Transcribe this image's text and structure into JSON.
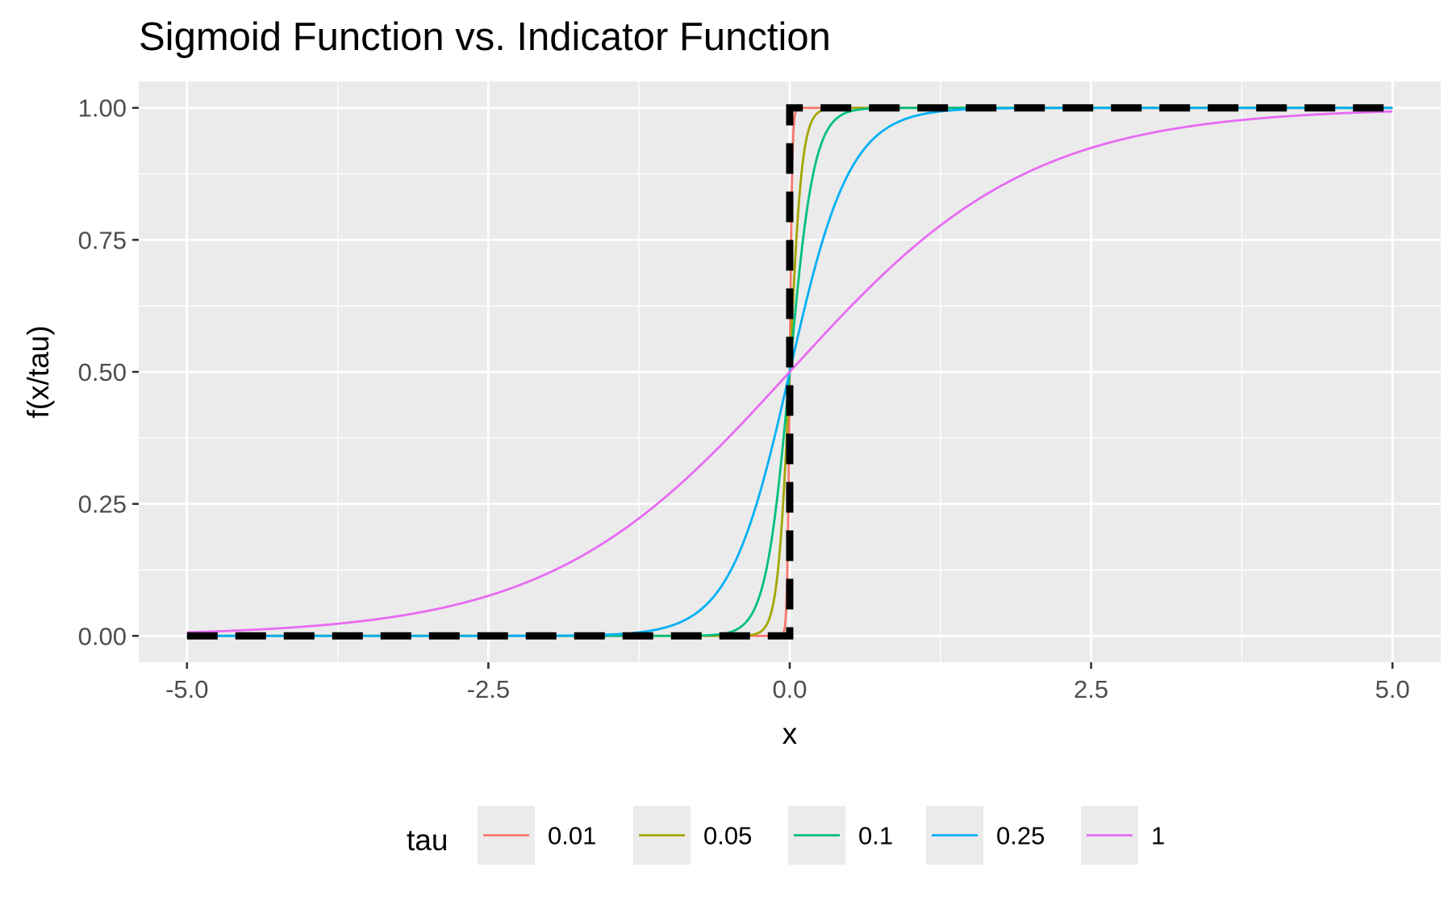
{
  "chart_data": {
    "type": "line",
    "title": "Sigmoid Function vs. Indicator Function",
    "xlabel": "x",
    "ylabel": "f(x/tau)",
    "xlim": [
      -5.4,
      5.4
    ],
    "ylim": [
      -0.05,
      1.05
    ],
    "x_ticks": [
      {
        "value": -5,
        "label": "-5.0"
      },
      {
        "value": -2.5,
        "label": "-2.5"
      },
      {
        "value": 0,
        "label": "0.0"
      },
      {
        "value": 2.5,
        "label": "2.5"
      },
      {
        "value": 5,
        "label": "5.0"
      }
    ],
    "y_ticks": [
      {
        "value": 0,
        "label": "0.00"
      },
      {
        "value": 0.25,
        "label": "0.25"
      },
      {
        "value": 0.5,
        "label": "0.50"
      },
      {
        "value": 0.75,
        "label": "0.75"
      },
      {
        "value": 1,
        "label": "1.00"
      }
    ],
    "x_minor": [
      -3.75,
      -1.25,
      1.25,
      3.75
    ],
    "y_minor": [
      0.125,
      0.375,
      0.625,
      0.875
    ],
    "grid": true,
    "panel_background": "#ebebeb",
    "grid_color": "#ffffff",
    "function": "sigmoid",
    "x_range": [
      -5,
      5
    ],
    "legend": {
      "title": "tau",
      "position": "bottom"
    },
    "series": [
      {
        "name": "0.01",
        "tau": 0.01,
        "color": "#f8766d"
      },
      {
        "name": "0.05",
        "tau": 0.05,
        "color": "#a3a500"
      },
      {
        "name": "0.1",
        "tau": 0.1,
        "color": "#00bf7d"
      },
      {
        "name": "0.25",
        "tau": 0.25,
        "color": "#00b0f6"
      },
      {
        "name": "1",
        "tau": 1,
        "color": "#e76bf3"
      }
    ],
    "indicator": {
      "color": "#000000",
      "style": "dashed",
      "points": [
        [
          -5,
          0
        ],
        [
          0,
          0
        ],
        [
          0,
          1
        ],
        [
          5,
          1
        ]
      ]
    }
  }
}
